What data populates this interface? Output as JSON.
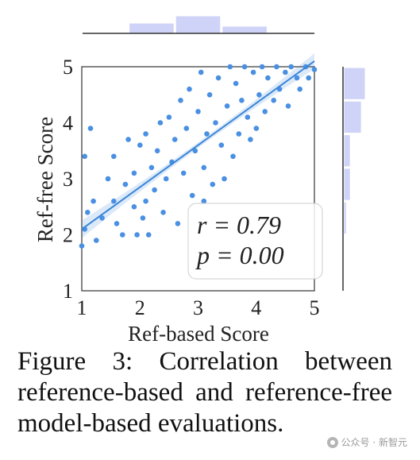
{
  "chart_data": {
    "type": "scatter",
    "xlabel": "Ref-based Score",
    "ylabel": "Ref-free Score",
    "xlim": [
      1,
      5
    ],
    "ylim": [
      1,
      5
    ],
    "xticks": [
      "1",
      "2",
      "3",
      "4",
      "5"
    ],
    "yticks": [
      "1",
      "2",
      "3",
      "4",
      "5"
    ],
    "regression": {
      "x": [
        1.0,
        5.0
      ],
      "y": [
        2.1,
        5.1
      ],
      "r_text": "r = 0.79",
      "p_text": "p = 0.00"
    },
    "point_color": "#4a90e2",
    "line_color": "#3a85d8",
    "hist_color": "#cfd3f7",
    "top_histogram": {
      "bins": [
        [
          1.8,
          2.6
        ],
        [
          2.6,
          3.4
        ],
        [
          3.4,
          4.2
        ]
      ],
      "counts": [
        10,
        17,
        7
      ]
    },
    "right_histogram": {
      "bins": [
        [
          4.4,
          5.0
        ],
        [
          3.8,
          4.4
        ],
        [
          3.2,
          3.8
        ],
        [
          2.6,
          3.2
        ],
        [
          2.0,
          2.6
        ]
      ],
      "counts": [
        33,
        27,
        10,
        10,
        4
      ]
    },
    "points": [
      [
        1.0,
        1.8
      ],
      [
        1.05,
        3.4
      ],
      [
        1.05,
        2.1
      ],
      [
        1.1,
        2.4
      ],
      [
        1.15,
        3.9
      ],
      [
        1.2,
        2.6
      ],
      [
        1.25,
        1.9
      ],
      [
        1.35,
        2.3
      ],
      [
        1.45,
        3.0
      ],
      [
        1.55,
        2.6
      ],
      [
        1.55,
        3.4
      ],
      [
        1.6,
        2.2
      ],
      [
        1.7,
        2.0
      ],
      [
        1.75,
        2.9
      ],
      [
        1.8,
        3.7
      ],
      [
        1.9,
        2.5
      ],
      [
        1.9,
        3.1
      ],
      [
        1.95,
        2.0
      ],
      [
        2.0,
        3.6
      ],
      [
        2.05,
        2.3
      ],
      [
        2.1,
        2.6
      ],
      [
        2.1,
        3.8
      ],
      [
        2.15,
        2.0
      ],
      [
        2.2,
        3.2
      ],
      [
        2.25,
        2.8
      ],
      [
        2.3,
        3.5
      ],
      [
        2.35,
        4.0
      ],
      [
        2.4,
        2.4
      ],
      [
        2.45,
        3.0
      ],
      [
        2.5,
        4.1
      ],
      [
        2.55,
        3.3
      ],
      [
        2.6,
        3.7
      ],
      [
        2.65,
        2.2
      ],
      [
        2.7,
        4.4
      ],
      [
        2.75,
        3.1
      ],
      [
        2.8,
        3.9
      ],
      [
        2.85,
        4.6
      ],
      [
        2.9,
        2.7
      ],
      [
        2.95,
        3.5
      ],
      [
        3.0,
        4.2
      ],
      [
        3.05,
        4.9
      ],
      [
        3.1,
        3.2
      ],
      [
        3.1,
        2.6
      ],
      [
        3.15,
        3.8
      ],
      [
        3.2,
        4.5
      ],
      [
        3.25,
        2.9
      ],
      [
        3.3,
        4.0
      ],
      [
        3.35,
        4.8
      ],
      [
        3.4,
        3.6
      ],
      [
        3.45,
        3.0
      ],
      [
        3.5,
        4.3
      ],
      [
        3.55,
        5.0
      ],
      [
        3.6,
        3.4
      ],
      [
        3.65,
        4.7
      ],
      [
        3.7,
        3.8
      ],
      [
        3.75,
        4.4
      ],
      [
        3.8,
        5.0
      ],
      [
        3.85,
        4.1
      ],
      [
        3.9,
        3.7
      ],
      [
        3.95,
        4.9
      ],
      [
        4.0,
        3.9
      ],
      [
        4.05,
        4.5
      ],
      [
        4.1,
        5.0
      ],
      [
        4.15,
        4.2
      ],
      [
        4.2,
        4.8
      ],
      [
        4.3,
        4.4
      ],
      [
        4.35,
        5.0
      ],
      [
        4.4,
        4.6
      ],
      [
        4.5,
        4.9
      ],
      [
        4.55,
        4.3
      ],
      [
        4.6,
        5.0
      ],
      [
        4.7,
        4.8
      ],
      [
        4.75,
        4.6
      ],
      [
        4.85,
        5.0
      ],
      [
        4.9,
        4.8
      ],
      [
        5.0,
        4.95
      ]
    ]
  },
  "caption": "Figure 3: Correlation between reference-based and reference-free model-based evaluations.",
  "watermark": "公众号 · 新智元"
}
